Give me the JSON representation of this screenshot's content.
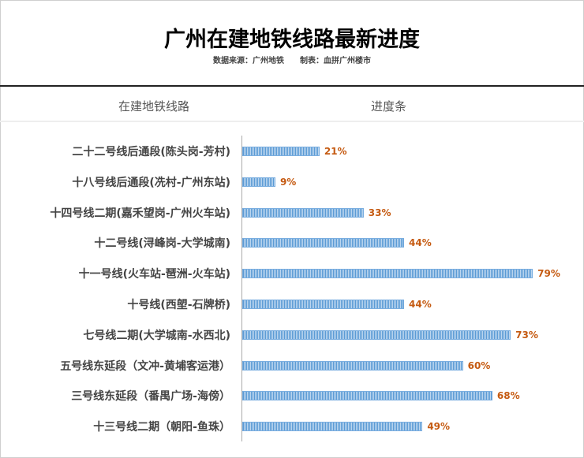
{
  "title": "广州在建地铁线路最新进度",
  "source": "数据来源：广州地铁",
  "maker": "制表：血拼广州楼市",
  "col_headers": [
    "在建地铁线路",
    "进度条"
  ],
  "colors": {
    "bar": "#5b9bd5",
    "value": "#c55a11"
  },
  "chart_data": {
    "type": "bar",
    "orientation": "horizontal",
    "title": "广州在建地铁线路最新进度",
    "xlabel": "进度条",
    "ylabel": "在建地铁线路",
    "xlim": [
      0,
      100
    ],
    "categories": [
      "二十二号线后通段(陈头岗-芳村)",
      "十八号线后通段(冼村-广州东站)",
      "十四号线二期(嘉禾望岗-广州火车站)",
      "十二号线(浔峰岗-大学城南)",
      "十一号线(火车站-琶洲-火车站)",
      "十号线(西塱-石牌桥)",
      "七号线二期(大学城南-水西北)",
      "五号线东延段（文冲-黄埔客运港）",
      "三号线东延段（番禺广场-海傍）",
      "十三号线二期（朝阳-鱼珠）"
    ],
    "values": [
      21,
      9,
      33,
      44,
      79,
      44,
      73,
      60,
      68,
      49
    ],
    "labels": [
      "21%",
      "9%",
      "33%",
      "44%",
      "79%",
      "44%",
      "73%",
      "60%",
      "68%",
      "49%"
    ]
  }
}
